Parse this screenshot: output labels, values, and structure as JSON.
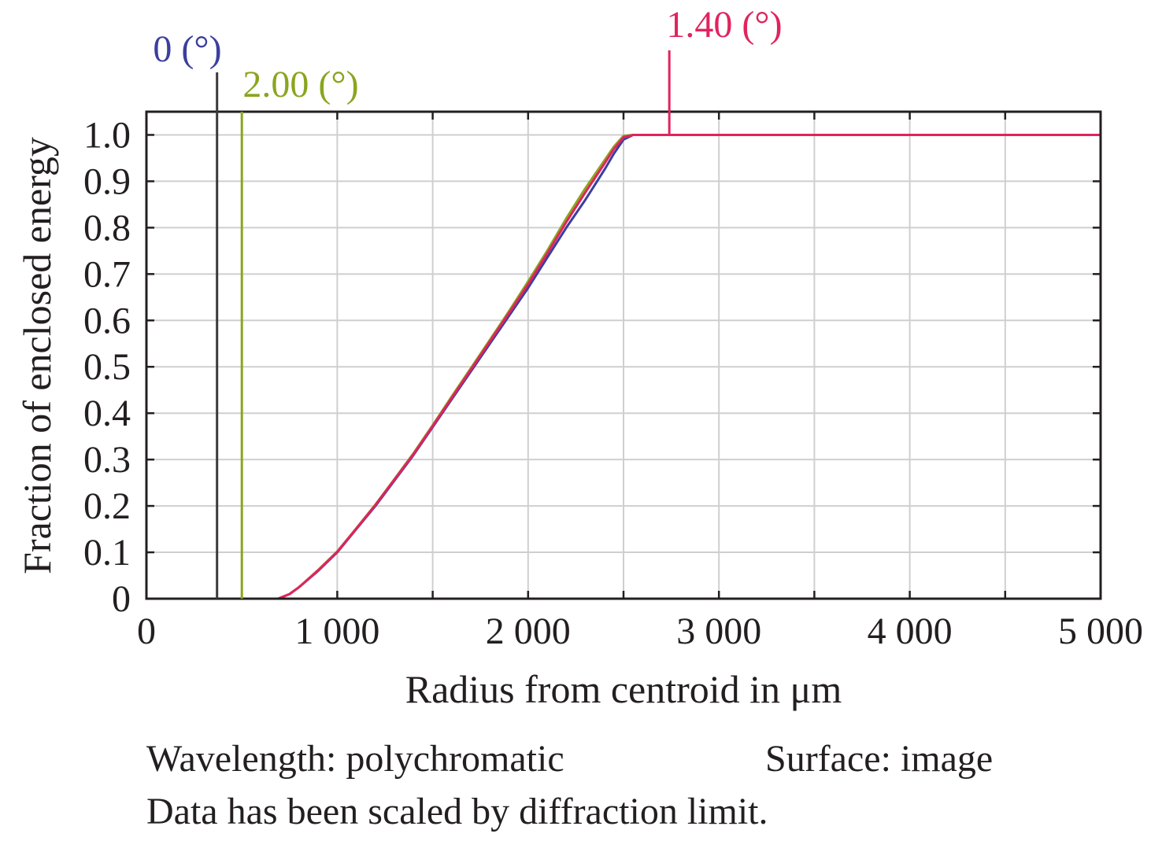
{
  "chart_data": {
    "type": "line",
    "xlabel": "Radius from centroid in μm",
    "ylabel": "Fraction of enclosed energy",
    "xlim": [
      0,
      5000
    ],
    "ylim": [
      0,
      1.05
    ],
    "x_ticks": [
      0,
      500,
      1000,
      1500,
      2000,
      2500,
      3000,
      3500,
      4000,
      4500,
      5000
    ],
    "x_tick_labels": [
      "0",
      "",
      "1 000",
      "",
      "2 000",
      "",
      "3 000",
      "",
      "4 000",
      "",
      "5 000"
    ],
    "y_ticks": [
      0,
      0.1,
      0.2,
      0.3,
      0.4,
      0.5,
      0.6,
      0.7,
      0.8,
      0.9,
      1.0
    ],
    "y_tick_labels": [
      "0",
      "0.1",
      "0.2",
      "0.3",
      "0.4",
      "0.5",
      "0.6",
      "0.7",
      "0.8",
      "0.9",
      "1.0"
    ],
    "grid": true,
    "series": [
      {
        "name": "0 (°)",
        "color": "#3b3f9e",
        "marker_x": 370,
        "marker_color": "#3a3a3a",
        "x": [
          0,
          690,
          750,
          800,
          900,
          1000,
          1100,
          1200,
          1300,
          1400,
          1500,
          1600,
          1700,
          1800,
          1900,
          2000,
          2100,
          2200,
          2300,
          2400,
          2450,
          2500,
          2550,
          5000
        ],
        "y": [
          0,
          0,
          0.01,
          0.025,
          0.06,
          0.1,
          0.15,
          0.2,
          0.255,
          0.31,
          0.37,
          0.43,
          0.49,
          0.55,
          0.61,
          0.67,
          0.735,
          0.8,
          0.86,
          0.925,
          0.96,
          0.99,
          1.0,
          1.0
        ]
      },
      {
        "name": "2.00 (°)",
        "color": "#8aa51f",
        "marker_x": 500,
        "marker_color": "#8aa51f",
        "x": [
          0,
          690,
          750,
          800,
          900,
          1000,
          1100,
          1200,
          1300,
          1400,
          1500,
          1600,
          1700,
          1800,
          1900,
          2000,
          2100,
          2200,
          2300,
          2400,
          2450,
          2500,
          2550,
          5000
        ],
        "y": [
          0,
          0,
          0.01,
          0.025,
          0.062,
          0.102,
          0.152,
          0.203,
          0.258,
          0.314,
          0.374,
          0.436,
          0.497,
          0.558,
          0.62,
          0.684,
          0.75,
          0.82,
          0.885,
          0.945,
          0.975,
          0.998,
          1.0,
          1.0
        ]
      },
      {
        "name": "1.40 (°)",
        "color": "#e0245e",
        "marker_x": 2740,
        "marker_color": "#e0245e",
        "x": [
          0,
          690,
          750,
          800,
          900,
          1000,
          1100,
          1200,
          1300,
          1400,
          1500,
          1600,
          1700,
          1800,
          1900,
          2000,
          2100,
          2200,
          2300,
          2400,
          2450,
          2500,
          2550,
          5000
        ],
        "y": [
          0,
          0,
          0.01,
          0.025,
          0.061,
          0.101,
          0.151,
          0.202,
          0.257,
          0.312,
          0.372,
          0.433,
          0.494,
          0.555,
          0.616,
          0.678,
          0.744,
          0.812,
          0.876,
          0.938,
          0.97,
          0.995,
          1.0,
          1.0
        ]
      }
    ]
  },
  "footer": {
    "wavelength": "Wavelength: polychromatic",
    "surface": "Surface: image",
    "scaled_note": "Data has been scaled by diffraction limit."
  }
}
